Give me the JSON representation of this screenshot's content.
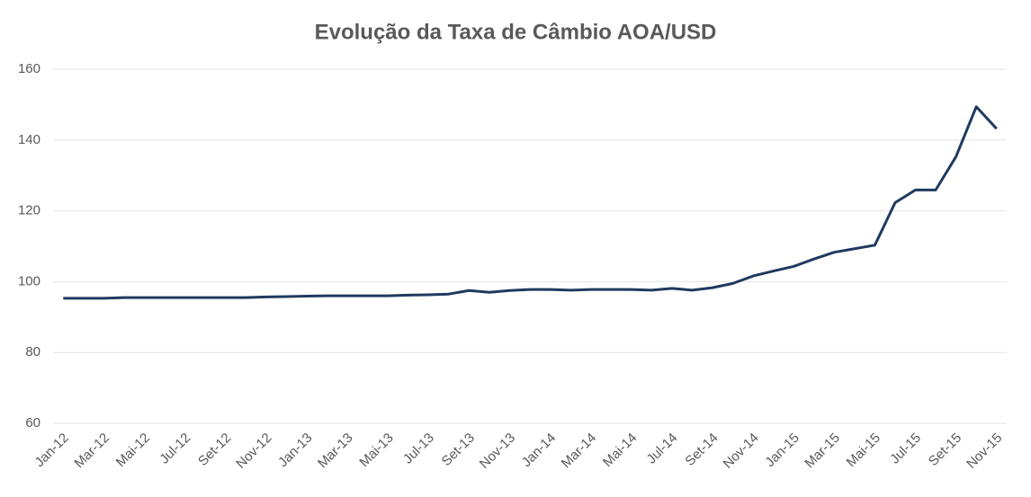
{
  "chart_data": {
    "type": "line",
    "title": "Evolução da Taxa de Câmbio AOA/USD",
    "categories": [
      "Jan-12",
      null,
      "Mar-12",
      null,
      "Mai-12",
      null,
      "Jul-12",
      null,
      "Set-12",
      null,
      "Nov-12",
      null,
      "Jan-13",
      null,
      "Mar-13",
      null,
      "Mai-13",
      null,
      "Jul-13",
      null,
      "Set-13",
      null,
      "Nov-13",
      null,
      "Jan-14",
      null,
      "Mar-14",
      null,
      "Mai-14",
      null,
      "Jul-14",
      null,
      "Set-14",
      null,
      "Nov-14",
      null,
      "Jan-15",
      null,
      "Mar-15",
      null,
      "Mai-15",
      null,
      "Jul-15",
      null,
      "Set-15",
      null,
      "Nov-15"
    ],
    "values": [
      95.3,
      95.3,
      95.3,
      95.5,
      95.5,
      95.5,
      95.5,
      95.5,
      95.5,
      95.5,
      95.7,
      95.8,
      95.9,
      96.0,
      96.0,
      96.0,
      96.0,
      96.2,
      96.3,
      96.5,
      97.5,
      97.0,
      97.5,
      97.8,
      97.8,
      97.6,
      97.8,
      97.8,
      97.8,
      97.6,
      98.1,
      97.6,
      98.3,
      99.5,
      101.6,
      103.0,
      104.3,
      106.4,
      108.3,
      109.3,
      110.3,
      122.3,
      125.9,
      125.9,
      135.3,
      149.4,
      143.2
    ],
    "color": "#1f3a5f",
    "ylim": [
      60,
      160
    ],
    "yticks": [
      60,
      80,
      100,
      120,
      140,
      160
    ],
    "grid": true
  }
}
